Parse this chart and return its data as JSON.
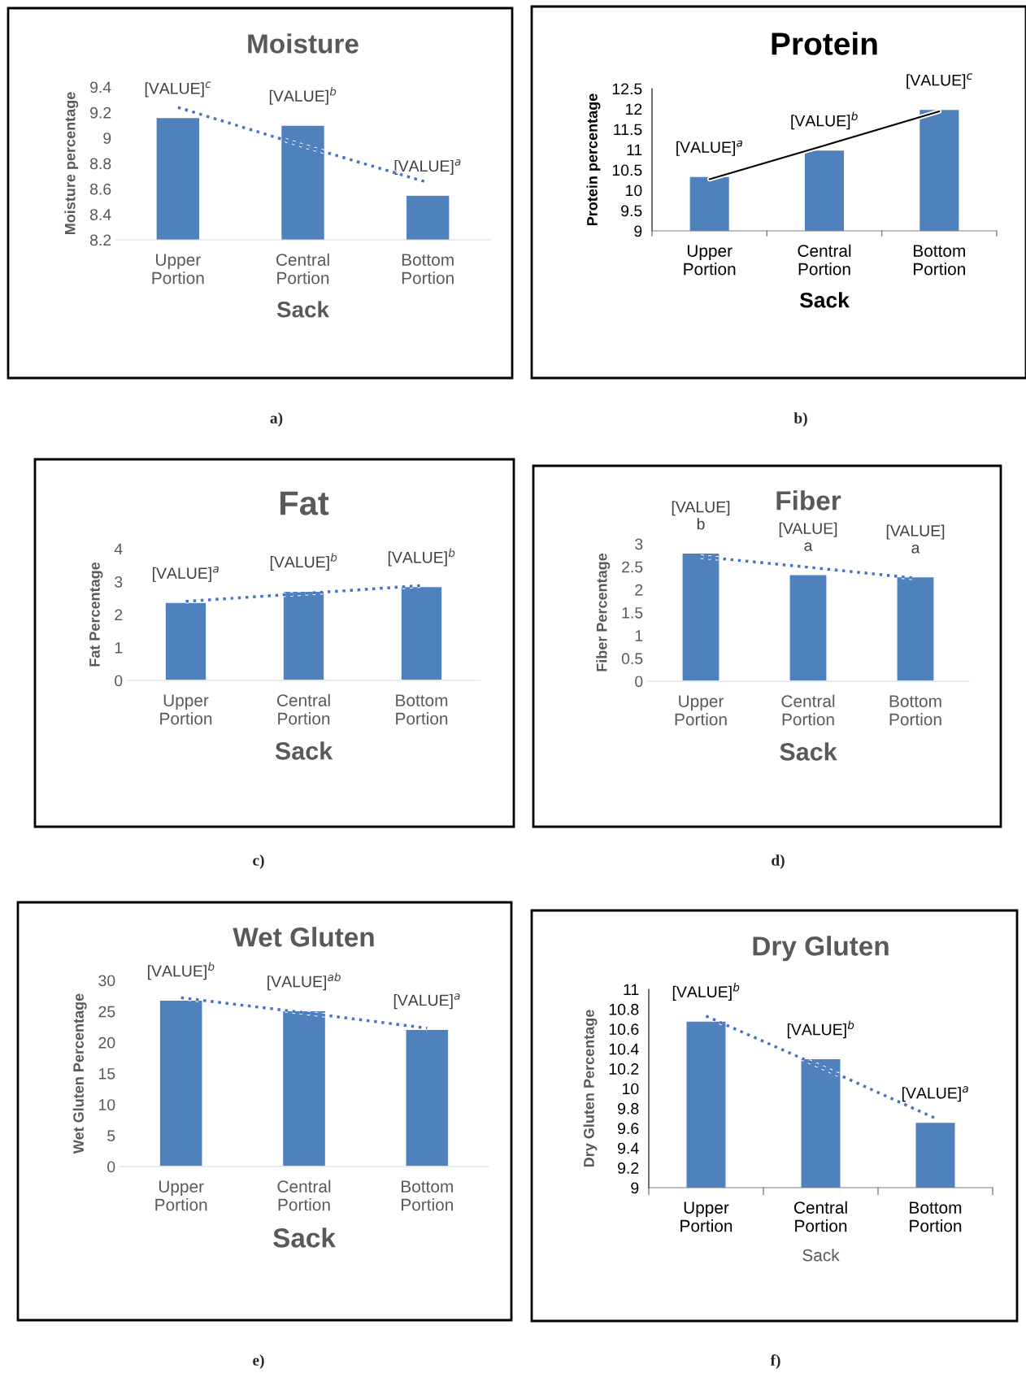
{
  "chart_data": [
    {
      "type": "bar",
      "title": "Moisture",
      "xlabel": "Sack",
      "ylabel": "Moisture percentage",
      "categories": [
        "Upper Portion",
        "Central Portion",
        "Bottom Portion"
      ],
      "ylim": [
        8.2,
        9.4
      ],
      "yticks": [
        8.2,
        8.4,
        8.6,
        8.8,
        9,
        9.2,
        9.4
      ],
      "grid": false,
      "legend": false,
      "annotations": [
        "a)"
      ],
      "series": [
        {
          "color": "#4f81bd",
          "values": [
            9.16,
            9.1,
            8.55
          ],
          "value_labels": [
            "[VALUE]$^{c}$",
            "[VALUE]$^{b}$",
            "[VALUE]$^{a}$"
          ]
        },
        {
          "type": "line",
          "color": "#4472c4",
          "line_style": "dotted",
          "values": [
            9.24,
            8.94,
            8.65
          ]
        }
      ]
    },
    {
      "type": "bar",
      "title": "Protein",
      "xlabel": "Sack",
      "ylabel": "Protein percentage",
      "categories": [
        "Upper Portion",
        "Central Portion",
        "Bottom Portion"
      ],
      "ylim": [
        9,
        12.5
      ],
      "yticks": [
        9,
        9.5,
        10,
        10.5,
        11,
        11.5,
        12,
        12.5
      ],
      "grid": false,
      "legend": false,
      "annotations": [
        "b)"
      ],
      "series": [
        {
          "color": "#4f81bd",
          "values": [
            10.34,
            10.99,
            11.99
          ],
          "value_labels": [
            "[VALUE]$^{a}$",
            "[VALUE]$^{b}$",
            "[VALUE]$^{c}$"
          ]
        },
        {
          "type": "line",
          "color": "#000000",
          "line_style": "solid",
          "values": [
            10.27,
            11.1,
            11.94
          ]
        }
      ]
    },
    {
      "type": "bar",
      "title": "Fat",
      "xlabel": "Sack",
      "ylabel": "Fat Percentage",
      "categories": [
        "Upper Portion",
        "Central Portion",
        "Bottom Portion"
      ],
      "ylim": [
        0,
        4
      ],
      "yticks": [
        0,
        1,
        2,
        3,
        4
      ],
      "grid": false,
      "legend": false,
      "annotations": [
        "c)"
      ],
      "series": [
        {
          "color": "#4f81bd",
          "values": [
            2.37,
            2.71,
            2.85
          ],
          "value_labels": [
            "[VALUE]$^{a}$",
            "[VALUE]$^{b}$",
            "[VALUE]$^{b}$"
          ]
        },
        {
          "type": "line",
          "color": "#4472c4",
          "line_style": "dotted",
          "values": [
            2.4,
            2.64,
            2.88
          ]
        }
      ]
    },
    {
      "type": "bar",
      "title": "Fiber",
      "xlabel": "Sack",
      "ylabel": "Fiber Percentage",
      "categories": [
        "Upper Portion",
        "Central Portion",
        "Bottom Portion"
      ],
      "ylim": [
        0,
        3
      ],
      "yticks": [
        0,
        0.5,
        1,
        1.5,
        2,
        2.5,
        3
      ],
      "grid": false,
      "legend": false,
      "annotations": [
        "d)"
      ],
      "series": [
        {
          "color": "#4f81bd",
          "values": [
            2.8,
            2.33,
            2.28
          ],
          "value_labels": [
            "[VALUE]\nb",
            "[VALUE]\na",
            "[VALUE]\na"
          ]
        },
        {
          "type": "line",
          "color": "#4472c4",
          "line_style": "dotted",
          "values": [
            2.72,
            2.49,
            2.25
          ]
        }
      ]
    },
    {
      "type": "bar",
      "title": "Wet Gluten",
      "xlabel": "Sack",
      "ylabel": "Wet Gluten Percentage",
      "categories": [
        "Upper Portion",
        "Central Portion",
        "Bottom Portion"
      ],
      "ylim": [
        0,
        30
      ],
      "yticks": [
        0,
        5,
        10,
        15,
        20,
        25,
        30
      ],
      "grid": false,
      "legend": false,
      "annotations": [
        "e)"
      ],
      "series": [
        {
          "color": "#4f81bd",
          "values": [
            26.8,
            25.1,
            22.1
          ],
          "value_labels": [
            "[VALUE]$^{b}$",
            "[VALUE]$^{ab}$",
            "[VALUE]$^{a}$"
          ]
        },
        {
          "type": "line",
          "color": "#4472c4",
          "line_style": "dotted",
          "values": [
            27.2,
            24.8,
            22.3
          ]
        }
      ]
    },
    {
      "type": "bar",
      "title": "Dry Gluten",
      "xlabel": "Sack",
      "ylabel": "Dry Gluten Percentage",
      "categories": [
        "Upper Portion",
        "Central Portion",
        "Bottom Portion"
      ],
      "ylim": [
        9,
        11
      ],
      "yticks": [
        9,
        9.2,
        9.4,
        9.6,
        9.8,
        10,
        10.2,
        10.4,
        10.6,
        10.8,
        11
      ],
      "grid": false,
      "legend": false,
      "annotations": [
        "f)"
      ],
      "series": [
        {
          "color": "#4f81bd",
          "values": [
            10.68,
            10.3,
            9.66
          ],
          "value_labels": [
            "[VALUE]$^{b}$",
            "[VALUE]$^{b}$",
            "[VALUE]$^{a}$"
          ]
        },
        {
          "type": "line",
          "color": "#4472c4",
          "line_style": "dotted",
          "values": [
            10.73,
            10.22,
            9.7
          ]
        }
      ]
    }
  ]
}
